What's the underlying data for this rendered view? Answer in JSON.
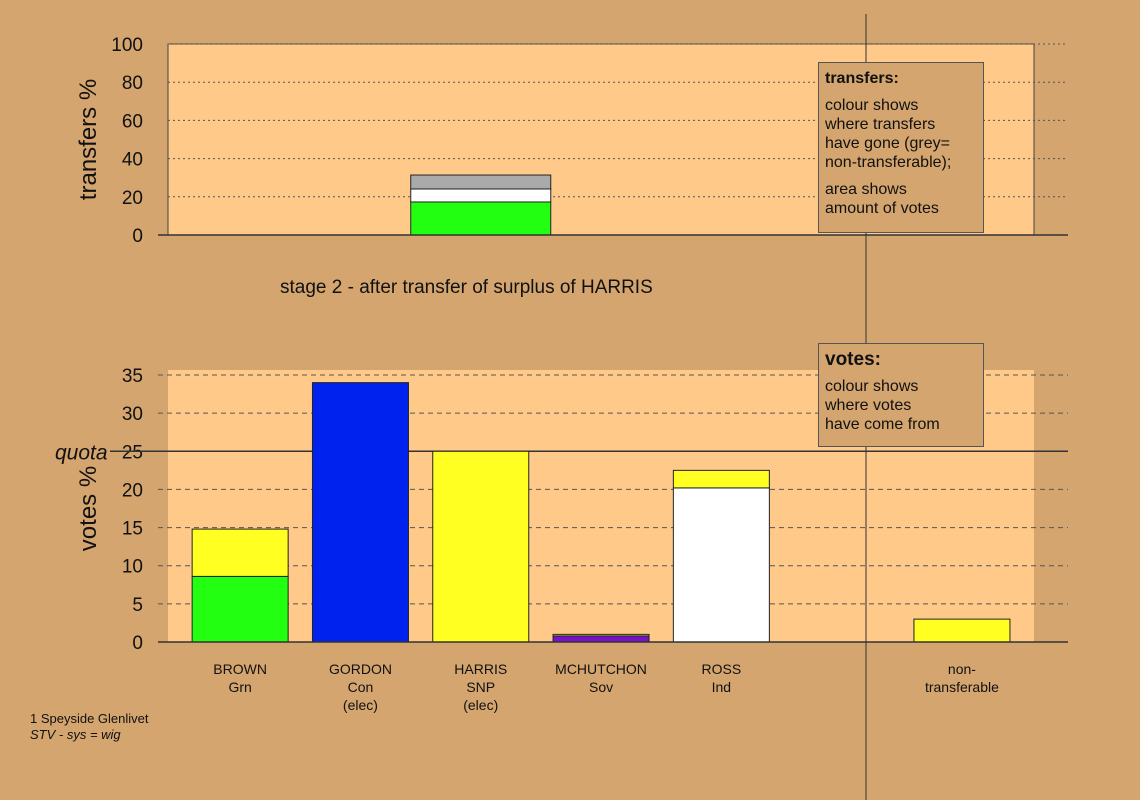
{
  "stage_title": "stage 2 - after transfer of surplus of HARRIS",
  "footer": [
    "1 Speyside Glenlivet",
    "STV - sys = wig"
  ],
  "notes": [
    {
      "title": "transfers:",
      "paragraphs": [
        "colour shows\nwhere transfers\nhave gone (grey=\nnon-transferable);",
        "area shows\namount of votes"
      ]
    },
    {
      "title": "votes:",
      "paragraphs": [
        "colour shows\nwhere votes\nhave come from"
      ]
    }
  ],
  "chart_data": [
    {
      "type": "bar",
      "stacked": true,
      "ylabel": "transfers %",
      "categories": [
        null,
        null,
        null,
        null,
        null,
        null,
        null
      ],
      "ylim": [
        0,
        100
      ],
      "yticks": [
        0,
        20,
        40,
        60,
        80,
        100
      ],
      "grid": true,
      "series": [
        {
          "color": "#22ff11",
          "values": [
            null,
            null,
            17.3,
            null,
            null,
            null,
            null
          ]
        },
        {
          "color": "#ffffff",
          "values": [
            null,
            null,
            6.8,
            null,
            null,
            null,
            null
          ]
        },
        {
          "color": "#aaaaaa",
          "values": [
            null,
            null,
            7.3,
            null,
            null,
            null,
            null
          ]
        }
      ]
    },
    {
      "type": "bar",
      "stacked": true,
      "ylabel": "votes %",
      "categories": [
        "BROWN\nGrn",
        "GORDON\nCon\n(elec)",
        "HARRIS\nSNP\n(elec)",
        "MCHUTCHON\nSov",
        "ROSS\nInd",
        null,
        "non-\ntransferable"
      ],
      "ylim": [
        0,
        35
      ],
      "yticks": [
        0,
        5,
        10,
        15,
        20,
        25,
        30,
        35
      ],
      "grid": true,
      "quota": {
        "value": 25,
        "label": "quota"
      },
      "series": [
        {
          "color": "#22ff11",
          "values": [
            8.6,
            null,
            null,
            null,
            null,
            null,
            null
          ]
        },
        {
          "color": "#0022ee",
          "values": [
            null,
            34.0,
            null,
            null,
            null,
            null,
            null
          ]
        },
        {
          "color": "#7711cc",
          "values": [
            null,
            null,
            null,
            0.8,
            null,
            null,
            null
          ]
        },
        {
          "color": "#ffffff",
          "values": [
            null,
            null,
            null,
            null,
            20.2,
            null,
            null
          ]
        },
        {
          "color": "#ffff22",
          "values": [
            6.2,
            null,
            25.0,
            0.2,
            2.3,
            null,
            3.0
          ]
        }
      ]
    }
  ]
}
